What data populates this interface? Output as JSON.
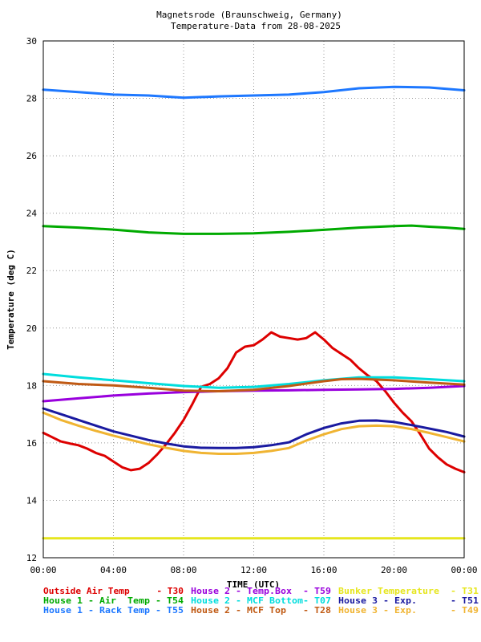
{
  "chart_data": {
    "type": "line",
    "title": "Magnetsrode (Braunschweig, Germany)",
    "subtitle": "Temperature-Data from 28-08-2025",
    "xlabel": "TIME (UTC)",
    "ylabel": "Temperature (deg C)",
    "xlim": [
      0,
      24
    ],
    "ylim": [
      12,
      30
    ],
    "x_tick_values": [
      0,
      4,
      8,
      12,
      16,
      20,
      24
    ],
    "x_tick_labels": [
      "00:00",
      "04:00",
      "08:00",
      "12:00",
      "16:00",
      "20:00",
      "00:00"
    ],
    "y_tick_values": [
      12,
      14,
      16,
      18,
      20,
      22,
      24,
      26,
      28,
      30
    ],
    "y_tick_labels": [
      "12",
      "14",
      "16",
      "18",
      "20",
      "22",
      "24",
      "26",
      "28",
      "30"
    ],
    "grid": true,
    "legend_position": "bottom",
    "series": [
      {
        "name": "Outside Air Temp",
        "code": "T30",
        "color": "#dd0000",
        "x": [
          0,
          0.5,
          1,
          1.5,
          2,
          2.5,
          3,
          3.5,
          4,
          4.5,
          5,
          5.5,
          6,
          6.5,
          7,
          7.5,
          8,
          8.5,
          9,
          9.5,
          10,
          10.5,
          11,
          11.5,
          12,
          12.5,
          13,
          13.5,
          14,
          14.5,
          15,
          15.5,
          16,
          16.5,
          17,
          17.5,
          18,
          18.5,
          19,
          19.5,
          20,
          20.5,
          21,
          21.5,
          22,
          22.5,
          23,
          23.5,
          24
        ],
        "y": [
          16.35,
          16.2,
          16.05,
          15.98,
          15.92,
          15.8,
          15.65,
          15.55,
          15.35,
          15.15,
          15.05,
          15.1,
          15.3,
          15.6,
          15.95,
          16.35,
          16.8,
          17.35,
          17.95,
          18.05,
          18.25,
          18.6,
          19.15,
          19.35,
          19.4,
          19.6,
          19.85,
          19.7,
          19.65,
          19.6,
          19.65,
          19.85,
          19.6,
          19.3,
          19.1,
          18.9,
          18.6,
          18.35,
          18.15,
          17.8,
          17.4,
          17.05,
          16.75,
          16.3,
          15.8,
          15.5,
          15.25,
          15.1,
          14.98
        ]
      },
      {
        "name": "House 1 - Air  Temp",
        "code": "T54",
        "color": "#00aa00",
        "x": [
          0,
          2,
          4,
          6,
          8,
          10,
          12,
          14,
          16,
          18,
          20,
          21,
          22,
          23,
          24
        ],
        "y": [
          23.55,
          23.5,
          23.43,
          23.33,
          23.28,
          23.28,
          23.3,
          23.35,
          23.42,
          23.5,
          23.55,
          23.57,
          23.53,
          23.5,
          23.45
        ]
      },
      {
        "name": "House 1 - Rack Temp",
        "code": "T55",
        "color": "#1e78ff",
        "x": [
          0,
          2,
          4,
          6,
          8,
          10,
          12,
          14,
          16,
          18,
          20,
          22,
          24
        ],
        "y": [
          28.3,
          28.22,
          28.13,
          28.1,
          28.02,
          28.07,
          28.1,
          28.13,
          28.22,
          28.35,
          28.4,
          28.38,
          28.28
        ]
      },
      {
        "name": "House 2 - Temp.Box",
        "code": "T59",
        "color": "#9900dd",
        "x": [
          0,
          2,
          4,
          6,
          8,
          10,
          12,
          14,
          16,
          18,
          20,
          22,
          24
        ],
        "y": [
          17.45,
          17.55,
          17.65,
          17.72,
          17.77,
          17.8,
          17.82,
          17.83,
          17.85,
          17.86,
          17.88,
          17.92,
          17.98
        ]
      },
      {
        "name": "House 2 - MCF Bottom",
        "code": "T07",
        "color": "#00dddd",
        "x": [
          0,
          2,
          4,
          6,
          8,
          10,
          12,
          14,
          16,
          18,
          20,
          22,
          24
        ],
        "y": [
          18.4,
          18.28,
          18.18,
          18.08,
          17.98,
          17.92,
          17.95,
          18.05,
          18.18,
          18.28,
          18.28,
          18.22,
          18.15
        ]
      },
      {
        "name": "House 2 - MCF Top",
        "code": "T28",
        "color": "#c05a14",
        "x": [
          0,
          2,
          4,
          6,
          8,
          10,
          12,
          14,
          16,
          17,
          18,
          20,
          22,
          24
        ],
        "y": [
          18.15,
          18.05,
          18.0,
          17.92,
          17.82,
          17.8,
          17.85,
          17.98,
          18.15,
          18.22,
          18.23,
          18.18,
          18.1,
          18.03
        ]
      },
      {
        "name": "Bunker Temperature",
        "code": "T31",
        "color": "#e6e61e",
        "x": [
          0,
          4,
          8,
          12,
          16,
          20,
          24
        ],
        "y": [
          12.68,
          12.68,
          12.68,
          12.68,
          12.68,
          12.68,
          12.68
        ]
      },
      {
        "name": "House 3 - Exp.",
        "code": "T51",
        "color": "#1a1aa0",
        "x": [
          0,
          1,
          2,
          3,
          4,
          5,
          6,
          7,
          8,
          9,
          10,
          11,
          12,
          13,
          14,
          15,
          16,
          17,
          18,
          19,
          20,
          21,
          22,
          23,
          24
        ],
        "y": [
          17.2,
          17.0,
          16.8,
          16.6,
          16.4,
          16.25,
          16.1,
          15.98,
          15.88,
          15.83,
          15.82,
          15.82,
          15.85,
          15.92,
          16.02,
          16.3,
          16.52,
          16.68,
          16.77,
          16.78,
          16.73,
          16.62,
          16.5,
          16.38,
          16.22
        ]
      },
      {
        "name": "House 3 - Exp.",
        "code": "T49",
        "color": "#f0b432",
        "x": [
          0,
          1,
          2,
          3,
          4,
          5,
          6,
          7,
          8,
          9,
          10,
          11,
          12,
          13,
          14,
          15,
          16,
          17,
          18,
          19,
          20,
          21,
          22,
          23,
          24
        ],
        "y": [
          17.05,
          16.8,
          16.6,
          16.42,
          16.25,
          16.1,
          15.95,
          15.83,
          15.72,
          15.65,
          15.62,
          15.62,
          15.65,
          15.72,
          15.82,
          16.08,
          16.3,
          16.48,
          16.58,
          16.6,
          16.58,
          16.48,
          16.35,
          16.2,
          16.05
        ]
      }
    ],
    "legend": [
      {
        "label": "Outside Air Temp     - T30",
        "color": "#dd0000"
      },
      {
        "label": "House 2 - Temp.Box  - T59",
        "color": "#9900dd"
      },
      {
        "label": "Bunker Temperature  - T31",
        "color": "#e6e61e"
      },
      {
        "label": "House 1 - Air  Temp - T54",
        "color": "#00aa00"
      },
      {
        "label": "House 2 - MCF Bottom- T07",
        "color": "#00dddd"
      },
      {
        "label": "House 3 - Exp.      - T51",
        "color": "#1a1aa0"
      },
      {
        "label": "House 1 - Rack Temp - T55",
        "color": "#1e78ff"
      },
      {
        "label": "House 2 - MCF Top   - T28",
        "color": "#c05a14"
      },
      {
        "label": "House 3 - Exp.      - T49",
        "color": "#f0b432"
      }
    ]
  }
}
